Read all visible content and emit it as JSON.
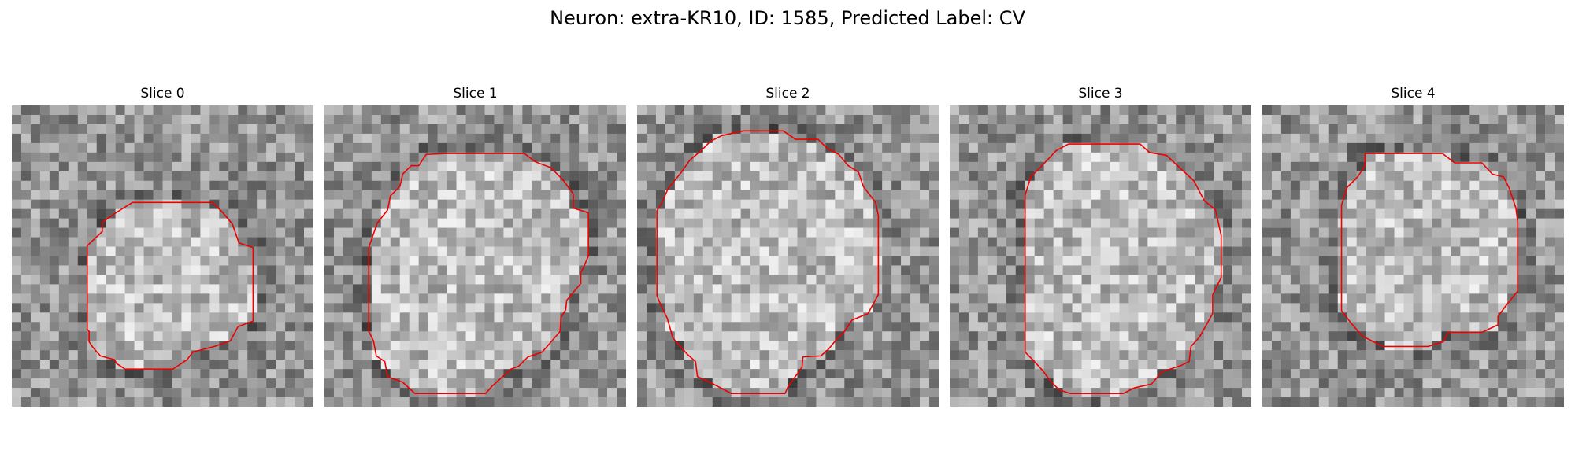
{
  "figure": {
    "title": "Neuron: extra-KR10, ID: 1585, Predicted Label: CV",
    "colormap": "grayscale",
    "outline_color": "#ee0000"
  },
  "panels": [
    {
      "title": "Slice 0"
    },
    {
      "title": "Slice 1"
    },
    {
      "title": "Slice 2"
    },
    {
      "title": "Slice 3"
    },
    {
      "title": "Slice 4"
    }
  ]
}
